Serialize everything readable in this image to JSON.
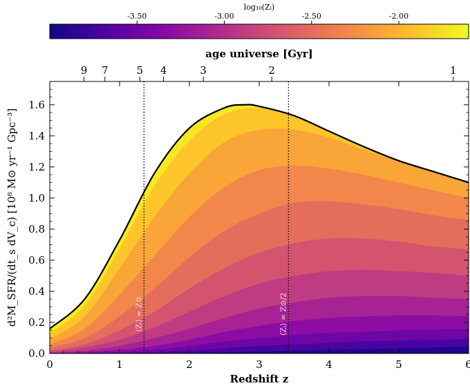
{
  "colorbar": {
    "label": "log₁₀(Zᵢ)",
    "min": -4.0,
    "max": -1.6,
    "ticks": [
      {
        "value": -3.5,
        "label": "-3.50"
      },
      {
        "value": -3.0,
        "label": "-3.00"
      },
      {
        "value": -2.5,
        "label": "-2.50"
      },
      {
        "value": -2.0,
        "label": "-2.00"
      }
    ],
    "colormap": [
      "#0d0887",
      "#5302a3",
      "#8b0aa5",
      "#b83289",
      "#db5c68",
      "#f48849",
      "#febd2a",
      "#f0f921"
    ]
  },
  "chart_data": {
    "type": "area",
    "xlabel": "Redshift z",
    "ylabel": "d²M_SFR/(dt_s dV_c) [10⁸ M⊙ yr⁻¹ Gpc⁻³]",
    "xlim": [
      0,
      6
    ],
    "ylim": [
      0,
      1.75
    ],
    "x_ticks": [
      {
        "value": 0,
        "label": "0"
      },
      {
        "value": 1,
        "label": "1"
      },
      {
        "value": 2,
        "label": "2"
      },
      {
        "value": 3,
        "label": "3"
      },
      {
        "value": 4,
        "label": "4"
      },
      {
        "value": 5,
        "label": "5"
      },
      {
        "value": 6,
        "label": "6"
      }
    ],
    "y_ticks": [
      {
        "value": 0.0,
        "label": "0.0"
      },
      {
        "value": 0.2,
        "label": "0.2"
      },
      {
        "value": 0.4,
        "label": "0.4"
      },
      {
        "value": 0.6,
        "label": "0.6"
      },
      {
        "value": 0.8,
        "label": "0.8"
      },
      {
        "value": 1.0,
        "label": "1.0"
      },
      {
        "value": 1.2,
        "label": "1.2"
      },
      {
        "value": 1.4,
        "label": "1.4"
      },
      {
        "value": 1.6,
        "label": "1.6"
      }
    ],
    "top_axis": {
      "label": "age universe [Gyr]",
      "ticks": [
        {
          "z": 0.49,
          "label": "9"
        },
        {
          "z": 0.79,
          "label": "7"
        },
        {
          "z": 1.29,
          "label": "5"
        },
        {
          "z": 1.63,
          "label": "4"
        },
        {
          "z": 2.2,
          "label": "3"
        },
        {
          "z": 3.18,
          "label": "2"
        },
        {
          "z": 5.78,
          "label": "1"
        }
      ]
    },
    "total_curve": {
      "x": [
        0,
        0.5,
        1.0,
        1.5,
        2.0,
        2.5,
        2.8,
        3.0,
        3.5,
        4.0,
        4.5,
        5.0,
        5.5,
        6.0
      ],
      "y": [
        0.16,
        0.35,
        0.73,
        1.16,
        1.45,
        1.58,
        1.6,
        1.59,
        1.53,
        1.43,
        1.33,
        1.24,
        1.17,
        1.1
      ]
    },
    "metallicity_bands": {
      "log_z": [
        -3.9,
        -3.7,
        -3.5,
        -3.3,
        -3.1,
        -2.9,
        -2.7,
        -2.5,
        -2.3,
        -2.1,
        -1.9,
        -1.7
      ],
      "boundary_x": [
        0,
        0.5,
        1.0,
        1.5,
        2.0,
        2.5,
        3.0,
        3.5,
        4.0,
        4.5,
        5.0,
        5.5,
        6.0
      ],
      "boundaries": [
        [
          0.0,
          0.0,
          0.0,
          0.0,
          0.0,
          0.0,
          0.0,
          0.0,
          0.0,
          0.0,
          0.0,
          0.0,
          0.0
        ],
        [
          0.0,
          0.0,
          0.0,
          0.0,
          0.005,
          0.01,
          0.015,
          0.02,
          0.025,
          0.03,
          0.035,
          0.04,
          0.045
        ],
        [
          0.0,
          0.0,
          0.005,
          0.01,
          0.02,
          0.035,
          0.05,
          0.06,
          0.07,
          0.08,
          0.085,
          0.09,
          0.095
        ],
        [
          0.0,
          0.005,
          0.01,
          0.025,
          0.05,
          0.08,
          0.1,
          0.12,
          0.135,
          0.14,
          0.15,
          0.155,
          0.16
        ],
        [
          0.0,
          0.01,
          0.025,
          0.05,
          0.09,
          0.14,
          0.18,
          0.21,
          0.23,
          0.24,
          0.245,
          0.245,
          0.24
        ],
        [
          0.005,
          0.02,
          0.05,
          0.1,
          0.16,
          0.23,
          0.29,
          0.33,
          0.36,
          0.37,
          0.37,
          0.36,
          0.35
        ],
        [
          0.01,
          0.04,
          0.09,
          0.17,
          0.27,
          0.37,
          0.45,
          0.5,
          0.53,
          0.54,
          0.53,
          0.52,
          0.5
        ],
        [
          0.02,
          0.06,
          0.15,
          0.27,
          0.42,
          0.55,
          0.65,
          0.71,
          0.74,
          0.74,
          0.72,
          0.69,
          0.67
        ],
        [
          0.04,
          0.1,
          0.24,
          0.42,
          0.62,
          0.79,
          0.9,
          0.97,
          0.98,
          0.96,
          0.93,
          0.89,
          0.86
        ],
        [
          0.06,
          0.16,
          0.38,
          0.63,
          0.88,
          1.07,
          1.18,
          1.21,
          1.19,
          1.15,
          1.1,
          1.05,
          1.0
        ],
        [
          0.09,
          0.24,
          0.55,
          0.88,
          1.16,
          1.36,
          1.44,
          1.44,
          1.39,
          1.31,
          1.24,
          1.17,
          1.1
        ],
        [
          0.13,
          0.31,
          0.68,
          1.08,
          1.37,
          1.54,
          1.58,
          1.53,
          1.43,
          1.33,
          1.24,
          1.17,
          1.1
        ],
        [
          0.16,
          0.35,
          0.73,
          1.16,
          1.45,
          1.58,
          1.59,
          1.53,
          1.43,
          1.33,
          1.24,
          1.17,
          1.1
        ]
      ]
    },
    "vlines": [
      {
        "x": 1.35,
        "label": "⟨Zᵢ⟩ ≈ Z⊙"
      },
      {
        "x": 3.42,
        "label": "⟨Zᵢ⟩ ≈ Z⊙/2"
      }
    ]
  }
}
